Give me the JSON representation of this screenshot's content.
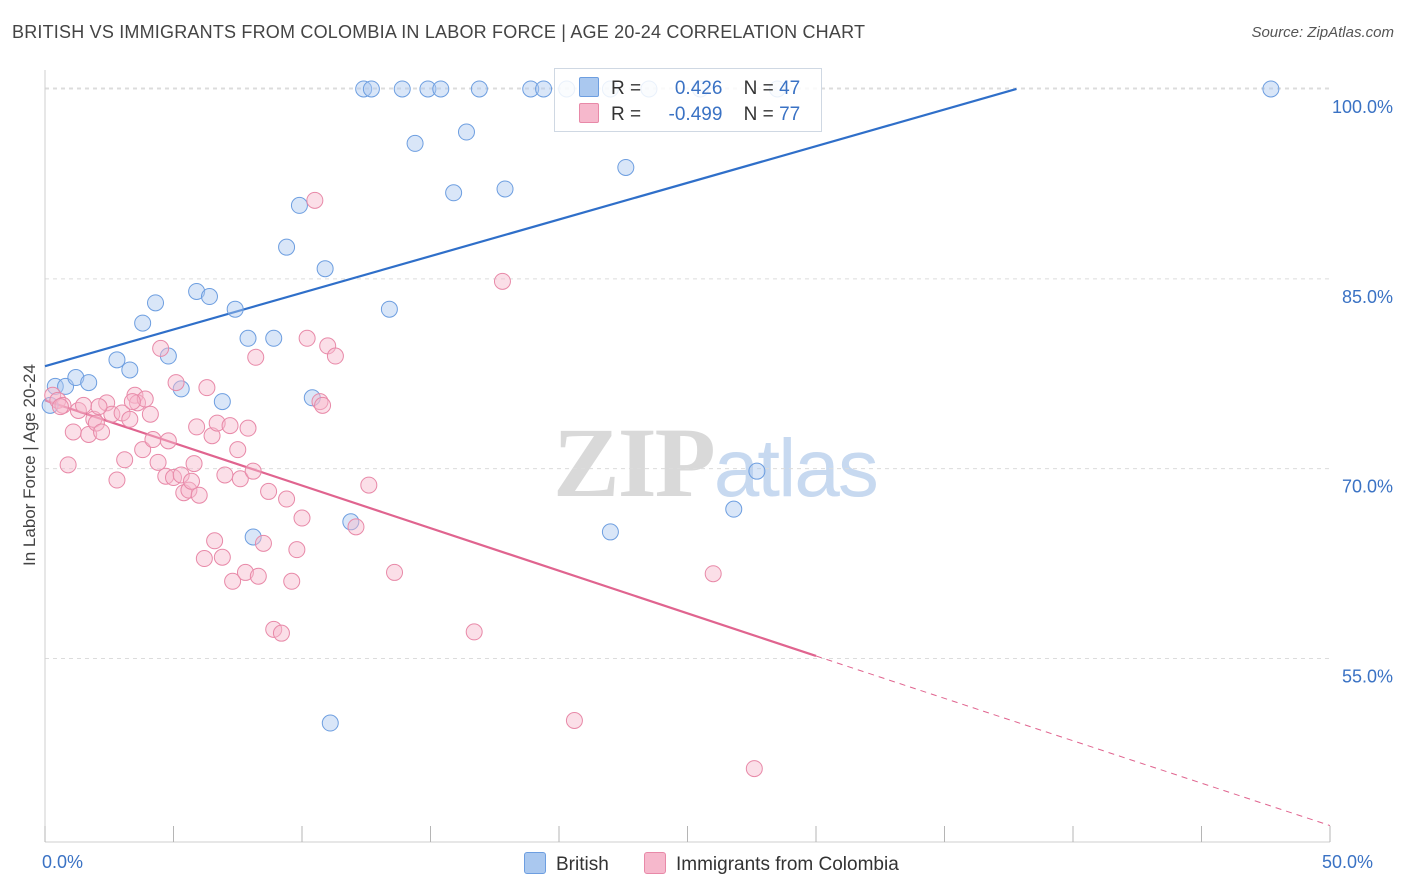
{
  "header": {
    "title": "BRITISH VS IMMIGRANTS FROM COLOMBIA IN LABOR FORCE | AGE 20-24 CORRELATION CHART",
    "source": "Source: ZipAtlas.com"
  },
  "watermark": {
    "zip": "ZIP",
    "atlas": "atlas"
  },
  "legend_top": {
    "british": {
      "r_label": "R =",
      "r_value": "0.426",
      "n_label": "N =",
      "n_value": "47"
    },
    "colombia": {
      "r_label": "R =",
      "r_value": "-0.499",
      "n_label": "N =",
      "n_value": "77"
    }
  },
  "legend_bottom": {
    "british": "British",
    "colombia": "Immigrants from Colombia"
  },
  "colors": {
    "british_fill": "#aac8ef",
    "british_stroke": "#6d9ee0",
    "british_line": "#2f6fc9",
    "colombia_fill": "#f6b8cc",
    "colombia_stroke": "#e889a8",
    "colombia_line": "#e0648f",
    "axis_text": "#3a72c4",
    "grid": "#dcdcdc"
  },
  "chart_data": {
    "type": "scatter",
    "title": "BRITISH VS IMMIGRANTS FROM COLOMBIA IN LABOR FORCE | AGE 20-24 CORRELATION CHART",
    "xlabel": "",
    "ylabel": "In Labor Force | Age 20-24",
    "xlim": [
      0,
      50
    ],
    "ylim": [
      40.5,
      101.5
    ],
    "x_tick_labels": [
      "0.0%",
      "50.0%"
    ],
    "y_ticks": [
      55,
      70,
      85,
      100
    ],
    "y_tick_labels": [
      "55.0%",
      "70.0%",
      "85.0%",
      "100.0%"
    ],
    "grid": true,
    "legend_position": "top-center",
    "series": [
      {
        "name": "British",
        "points": [
          [
            0.2,
            75.0
          ],
          [
            0.4,
            76.5
          ],
          [
            0.8,
            76.5
          ],
          [
            1.2,
            77.2
          ],
          [
            1.7,
            76.8
          ],
          [
            2.8,
            78.6
          ],
          [
            3.3,
            77.8
          ],
          [
            3.8,
            81.5
          ],
          [
            4.3,
            83.1
          ],
          [
            4.8,
            78.9
          ],
          [
            5.3,
            76.3
          ],
          [
            5.9,
            84.0
          ],
          [
            6.4,
            83.6
          ],
          [
            6.9,
            75.3
          ],
          [
            7.4,
            82.6
          ],
          [
            7.9,
            80.3
          ],
          [
            8.1,
            64.6
          ],
          [
            8.9,
            80.3
          ],
          [
            9.4,
            87.5
          ],
          [
            9.9,
            90.8
          ],
          [
            10.4,
            75.6
          ],
          [
            10.9,
            85.8
          ],
          [
            11.1,
            49.9
          ],
          [
            11.9,
            65.8
          ],
          [
            12.4,
            100.0
          ],
          [
            12.7,
            100.0
          ],
          [
            13.4,
            82.6
          ],
          [
            13.9,
            100.0
          ],
          [
            14.4,
            95.7
          ],
          [
            14.9,
            100.0
          ],
          [
            15.4,
            100.0
          ],
          [
            15.9,
            91.8
          ],
          [
            16.4,
            96.6
          ],
          [
            16.9,
            100.0
          ],
          [
            17.9,
            92.1
          ],
          [
            18.9,
            100.0
          ],
          [
            19.4,
            100.0
          ],
          [
            20.3,
            100.0
          ],
          [
            22.0,
            65.0
          ],
          [
            22.0,
            100.0
          ],
          [
            22.6,
            93.8
          ],
          [
            23.5,
            100.0
          ],
          [
            25.5,
            100.0
          ],
          [
            26.8,
            66.8
          ],
          [
            27.7,
            69.8
          ],
          [
            28.5,
            100.0
          ],
          [
            47.7,
            100.0
          ]
        ]
      },
      {
        "name": "Immigrants from Colombia",
        "points": [
          [
            0.3,
            75.8
          ],
          [
            0.5,
            75.4
          ],
          [
            0.7,
            75.0
          ],
          [
            0.9,
            70.3
          ],
          [
            1.1,
            72.9
          ],
          [
            1.3,
            74.6
          ],
          [
            1.5,
            75.0
          ],
          [
            1.7,
            72.7
          ],
          [
            1.9,
            73.9
          ],
          [
            2.0,
            73.6
          ],
          [
            2.2,
            72.9
          ],
          [
            2.4,
            75.2
          ],
          [
            2.6,
            74.3
          ],
          [
            2.8,
            69.1
          ],
          [
            3.0,
            74.4
          ],
          [
            3.1,
            70.7
          ],
          [
            3.3,
            73.9
          ],
          [
            3.5,
            75.8
          ],
          [
            3.6,
            75.2
          ],
          [
            3.8,
            71.5
          ],
          [
            3.9,
            75.5
          ],
          [
            4.1,
            74.3
          ],
          [
            4.2,
            72.3
          ],
          [
            4.4,
            70.5
          ],
          [
            4.5,
            79.5
          ],
          [
            4.7,
            69.4
          ],
          [
            4.8,
            72.2
          ],
          [
            5.0,
            69.3
          ],
          [
            5.1,
            76.8
          ],
          [
            5.3,
            69.5
          ],
          [
            5.4,
            68.1
          ],
          [
            5.6,
            68.3
          ],
          [
            5.7,
            69.0
          ],
          [
            5.9,
            73.3
          ],
          [
            6.0,
            67.9
          ],
          [
            6.2,
            62.9
          ],
          [
            6.3,
            76.4
          ],
          [
            6.5,
            72.6
          ],
          [
            6.6,
            64.3
          ],
          [
            6.7,
            73.6
          ],
          [
            6.9,
            63.0
          ],
          [
            7.0,
            69.5
          ],
          [
            7.2,
            73.4
          ],
          [
            7.3,
            61.1
          ],
          [
            7.5,
            71.5
          ],
          [
            7.6,
            69.2
          ],
          [
            7.8,
            61.8
          ],
          [
            7.9,
            73.2
          ],
          [
            8.1,
            69.8
          ],
          [
            8.2,
            78.8
          ],
          [
            8.3,
            61.5
          ],
          [
            8.5,
            64.1
          ],
          [
            8.7,
            68.2
          ],
          [
            8.9,
            57.3
          ],
          [
            9.2,
            57.0
          ],
          [
            9.4,
            67.6
          ],
          [
            9.6,
            61.1
          ],
          [
            9.8,
            63.6
          ],
          [
            10.0,
            66.1
          ],
          [
            10.2,
            80.3
          ],
          [
            10.5,
            91.2
          ],
          [
            10.7,
            75.3
          ],
          [
            11.0,
            79.7
          ],
          [
            11.3,
            78.9
          ],
          [
            12.1,
            65.4
          ],
          [
            12.6,
            68.7
          ],
          [
            13.6,
            61.8
          ],
          [
            16.7,
            57.1
          ],
          [
            17.8,
            84.8
          ],
          [
            20.6,
            50.1
          ],
          [
            26.0,
            61.7
          ],
          [
            27.6,
            46.3
          ],
          [
            0.6,
            74.9
          ],
          [
            2.1,
            74.9
          ],
          [
            3.4,
            75.3
          ],
          [
            10.8,
            75.0
          ],
          [
            5.8,
            70.4
          ]
        ]
      }
    ],
    "trend_lines": [
      {
        "series": "British",
        "x": [
          0,
          37.8
        ],
        "y": [
          78.1,
          100.0
        ],
        "style": "solid"
      },
      {
        "series": "Immigrants from Colombia",
        "x": [
          0,
          30.0
        ],
        "y": [
          75.4,
          55.2
        ],
        "style": "solid"
      },
      {
        "series": "Immigrants from Colombia",
        "x": [
          30.0,
          50.0
        ],
        "y": [
          55.2,
          41.8
        ],
        "style": "dashed"
      }
    ]
  }
}
